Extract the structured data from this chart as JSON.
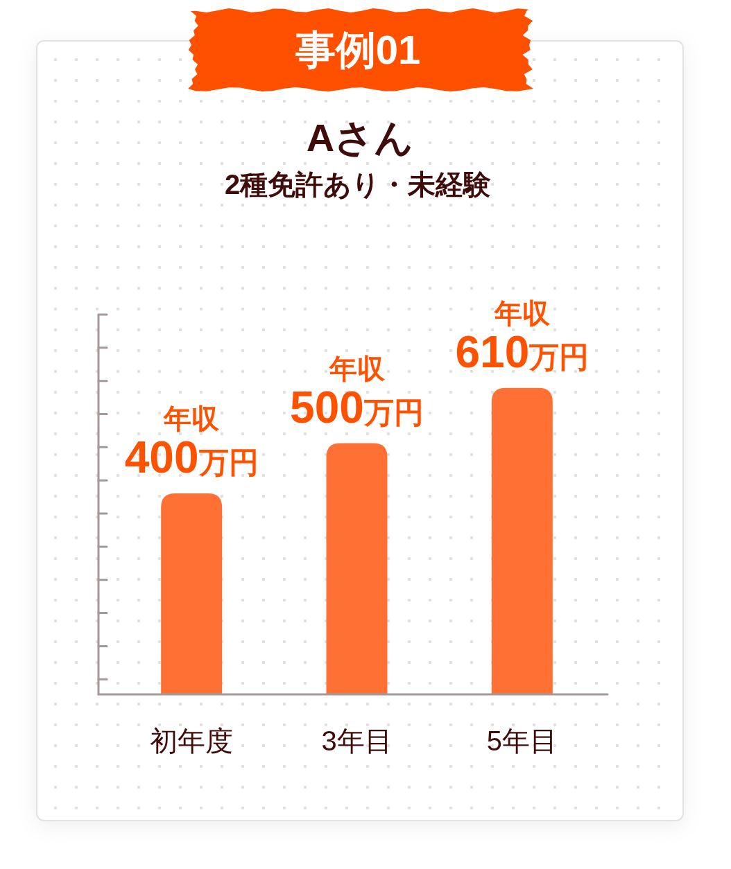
{
  "chart_data": {
    "type": "bar",
    "title": "Aさん",
    "subtitle": "2種免許あり・未経験",
    "annotations": [
      "事例01"
    ],
    "categories": [
      "初年度",
      "3年目",
      "5年目"
    ],
    "values": [
      400,
      500,
      610
    ],
    "color": "#ff7035",
    "value_labels": [
      "年収\n400万円",
      "年収\n500万円",
      "年収\n610万円"
    ],
    "ylim": [
      0,
      756
    ],
    "yticks": [
      {
        "value": 30,
        "label": null
      },
      {
        "value": 96,
        "label": null
      },
      {
        "value": 162,
        "label": null
      },
      {
        "value": 228,
        "label": null
      },
      {
        "value": 294,
        "label": null
      },
      {
        "value": 360,
        "label": null
      },
      {
        "value": 426,
        "label": null
      },
      {
        "value": 492,
        "label": null
      },
      {
        "value": 558,
        "label": null
      },
      {
        "value": 624,
        "label": null
      },
      {
        "value": 690,
        "label": null
      },
      {
        "value": 756,
        "label": null
      }
    ],
    "tick_labels": "x"
  }
}
